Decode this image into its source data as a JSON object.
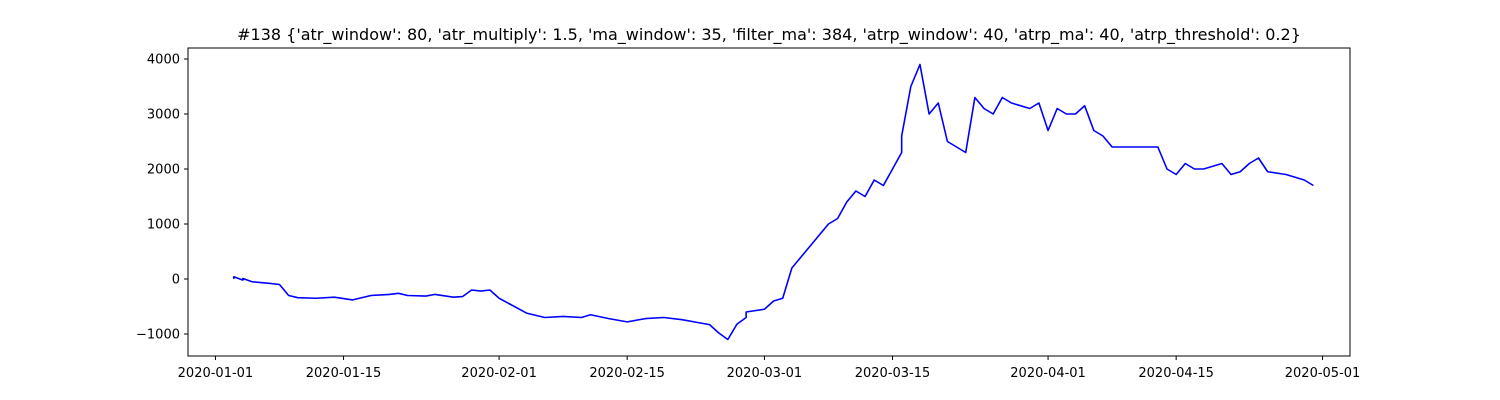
{
  "chart_data": {
    "type": "line",
    "title": "#138 {'atr_window': 80, 'atr_multiply': 1.5, 'ma_window': 35, 'filter_ma': 384, 'atrp_window': 40, 'atrp_ma': 40, 'atrp_threshold': 0.2}",
    "xlabel": "",
    "ylabel": "",
    "x_axis_type": "date",
    "xlim": [
      "2019-12-29",
      "2020-05-04"
    ],
    "ylim": [
      -1400,
      4200
    ],
    "grid": false,
    "legend": "none",
    "line_color": "#0000ff",
    "x_ticks": [
      {
        "label": "2020-01-01",
        "date": "2020-01-01"
      },
      {
        "label": "2020-01-15",
        "date": "2020-01-15"
      },
      {
        "label": "2020-02-01",
        "date": "2020-02-01"
      },
      {
        "label": "2020-02-15",
        "date": "2020-02-15"
      },
      {
        "label": "2020-03-01",
        "date": "2020-03-01"
      },
      {
        "label": "2020-03-15",
        "date": "2020-03-15"
      },
      {
        "label": "2020-04-01",
        "date": "2020-04-01"
      },
      {
        "label": "2020-04-15",
        "date": "2020-04-15"
      },
      {
        "label": "2020-05-01",
        "date": "2020-05-01"
      }
    ],
    "y_ticks": [
      {
        "label": "−1000",
        "value": -1000
      },
      {
        "label": "0",
        "value": 0
      },
      {
        "label": "1000",
        "value": 1000
      },
      {
        "label": "2000",
        "value": 2000
      },
      {
        "label": "3000",
        "value": 3000
      },
      {
        "label": "4000",
        "value": 4000
      }
    ],
    "series": [
      {
        "x": [
          "2020-01-03",
          "2020-01-03",
          "2020-01-04",
          "2020-01-04",
          "2020-01-05",
          "2020-01-07",
          "2020-01-08",
          "2020-01-09",
          "2020-01-10",
          "2020-01-12",
          "2020-01-14",
          "2020-01-16",
          "2020-01-18",
          "2020-01-20",
          "2020-01-21",
          "2020-01-22",
          "2020-01-24",
          "2020-01-25",
          "2020-01-27",
          "2020-01-28",
          "2020-01-29",
          "2020-01-30",
          "2020-01-31",
          "2020-02-01",
          "2020-02-04",
          "2020-02-06",
          "2020-02-08",
          "2020-02-10",
          "2020-02-11",
          "2020-02-13",
          "2020-02-15",
          "2020-02-17",
          "2020-02-19",
          "2020-02-21",
          "2020-02-23",
          "2020-02-24",
          "2020-02-25",
          "2020-02-26",
          "2020-02-27",
          "2020-02-28",
          "2020-02-28",
          "2020-03-01",
          "2020-03-02",
          "2020-03-03",
          "2020-03-04",
          "2020-03-05",
          "2020-03-06",
          "2020-03-07",
          "2020-03-08",
          "2020-03-09",
          "2020-03-10",
          "2020-03-11",
          "2020-03-12",
          "2020-03-13",
          "2020-03-14",
          "2020-03-16",
          "2020-03-16",
          "2020-03-17",
          "2020-03-18",
          "2020-03-19",
          "2020-03-20",
          "2020-03-21",
          "2020-03-23",
          "2020-03-24",
          "2020-03-25",
          "2020-03-26",
          "2020-03-27",
          "2020-03-28",
          "2020-03-30",
          "2020-03-31",
          "2020-04-01",
          "2020-04-02",
          "2020-04-03",
          "2020-04-04",
          "2020-04-05",
          "2020-04-06",
          "2020-04-07",
          "2020-04-08",
          "2020-04-09",
          "2020-04-11",
          "2020-04-12",
          "2020-04-13",
          "2020-04-14",
          "2020-04-15",
          "2020-04-16",
          "2020-04-17",
          "2020-04-18",
          "2020-04-19",
          "2020-04-20",
          "2020-04-21",
          "2020-04-22",
          "2020-04-23",
          "2020-04-24",
          "2020-04-25",
          "2020-04-27",
          "2020-04-28",
          "2020-04-29",
          "2020-04-30"
        ],
        "values": [
          0,
          40,
          -20,
          10,
          -50,
          -80,
          -100,
          -300,
          -340,
          -350,
          -330,
          -380,
          -300,
          -280,
          -260,
          -300,
          -310,
          -280,
          -330,
          -320,
          -200,
          -220,
          -200,
          -350,
          -620,
          -700,
          -680,
          -700,
          -650,
          -720,
          -780,
          -720,
          -700,
          -740,
          -800,
          -830,
          -980,
          -1100,
          -820,
          -700,
          -600,
          -550,
          -400,
          -350,
          200,
          400,
          600,
          800,
          1000,
          1100,
          1400,
          1600,
          1500,
          1800,
          1700,
          2300,
          2600,
          3500,
          3900,
          3000,
          3200,
          2500,
          2300,
          3300,
          3100,
          3000,
          3300,
          3200,
          3100,
          3200,
          2700,
          3100,
          3000,
          3000,
          3150,
          2700,
          2600,
          2400,
          2400,
          2400,
          2400,
          2400,
          2000,
          1900,
          2100,
          2000,
          2000,
          2050,
          2100,
          1900,
          1950,
          2100,
          2200,
          1950,
          1900,
          1850,
          1800,
          1700
        ]
      }
    ]
  }
}
